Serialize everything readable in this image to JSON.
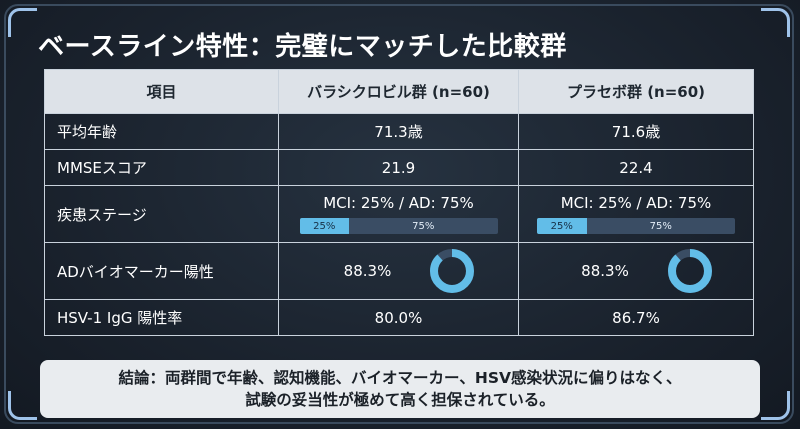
{
  "title": "ベースライン特性：完璧にマッチした比較群",
  "table": {
    "headers": [
      "項目",
      "バラシクロビル群 (n=60)",
      "プラセボ群 (n=60)"
    ],
    "rows": {
      "age": {
        "label": "平均年齢",
        "v1": "71.3歳",
        "v2": "71.6歳"
      },
      "mmse": {
        "label": "MMSEスコア",
        "v1": "21.9",
        "v2": "22.4"
      },
      "stage": {
        "label": "疾患ステージ",
        "v1": "MCI: 25% / AD: 75%",
        "v2": "MCI: 25% / AD: 75%",
        "bar1": {
          "mci_label": "25%",
          "ad_label": "75%",
          "mci_fraction": 0.25
        },
        "bar2": {
          "mci_label": "25%",
          "ad_label": "75%",
          "mci_fraction": 0.25
        }
      },
      "ad": {
        "label": "ADバイオマーカー陽性",
        "v1": "88.3%",
        "v2": "88.3%",
        "fraction1": 0.883,
        "fraction2": 0.883
      },
      "hsv": {
        "label": "HSV-1 IgG 陽性率",
        "v1": "80.0%",
        "v2": "86.7%"
      }
    }
  },
  "summary": {
    "line1": "結論：両群間で年齢、認知機能、バイオマーカー、HSV感染状況に偏りはなく、",
    "line2": "試験の妥当性が極めて高く担保されている。"
  },
  "colors": {
    "accent": "#62bde8",
    "track": "#3a4d64",
    "header_bg": "#dde2e8"
  }
}
